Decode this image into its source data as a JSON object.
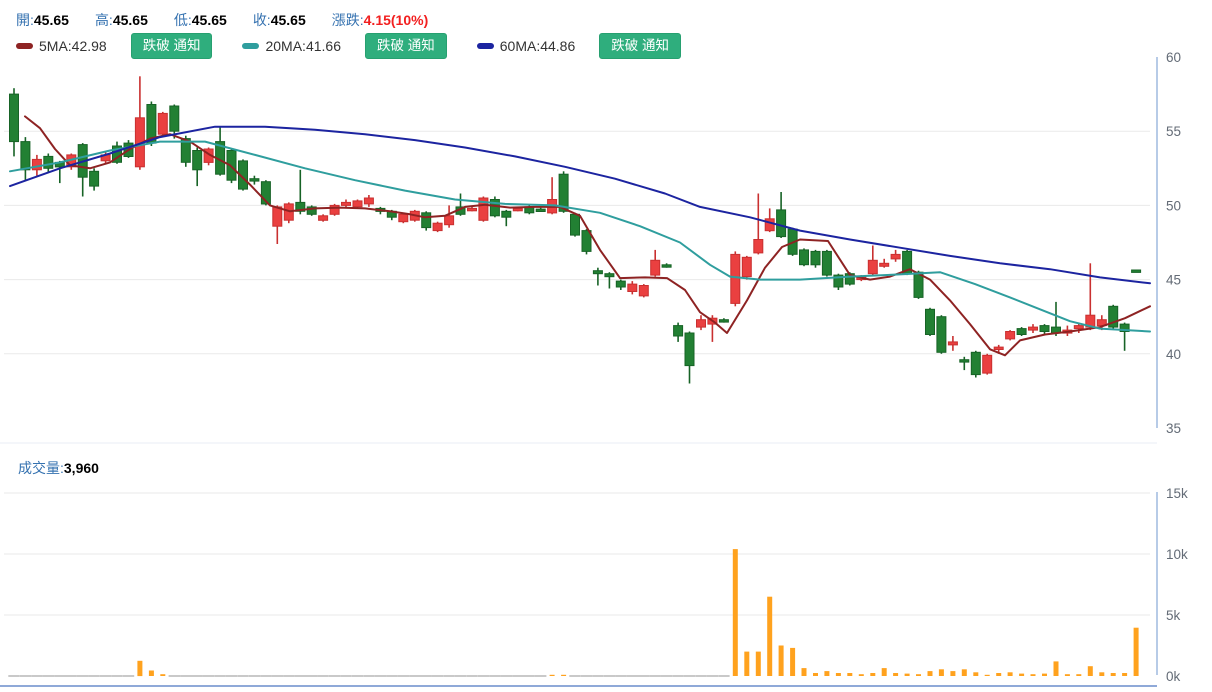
{
  "header": {
    "fields": [
      {
        "label": "開:",
        "value": "45.65"
      },
      {
        "label": "高:",
        "value": "45.65"
      },
      {
        "label": "低:",
        "value": "45.65"
      },
      {
        "label": "收:",
        "value": "45.65"
      }
    ],
    "change": {
      "label": "漲跌:",
      "value": "4.15(10%)",
      "color": "#f21f1f"
    },
    "ma_legend": [
      {
        "text": "5MA:42.98",
        "color": "#8e2323",
        "button": "跌破 通知"
      },
      {
        "text": "20MA:41.66",
        "color": "#2f9e9e",
        "button": "跌破 通知"
      },
      {
        "text": "60MA:44.86",
        "color": "#1c24a0",
        "button": "跌破 通知"
      }
    ],
    "button_color": "#2fae7d"
  },
  "volume_header": {
    "label": "成交量:",
    "value": "3,960"
  },
  "chart_data": {
    "type": "candlestick",
    "title": "",
    "legend_position": "top-left",
    "grid": true,
    "colors": {
      "up": "#ea4040",
      "up_stroke": "#c93030",
      "down": "#228033",
      "down_stroke": "#176326",
      "volume": "#ffa21e",
      "zero_volume_dash": "#c9c9c9",
      "gridline": "#eaeaea",
      "axis_line": "#b7cbe7",
      "axis_label": "#636b76",
      "separator": "#e8eef6",
      "bottom_line": "#8fa9d8"
    },
    "price_axis": {
      "range": [
        35,
        60
      ],
      "tick_values": [
        60,
        55,
        50,
        45,
        40,
        35
      ],
      "tick_labels": [
        "60",
        "55",
        "50",
        "45",
        "40",
        "35"
      ],
      "grid_values": [
        55,
        50,
        45,
        40
      ]
    },
    "volume_axis": {
      "range": [
        0,
        15000
      ],
      "tick_values": [
        15000,
        10000,
        5000,
        0
      ],
      "tick_labels": [
        "15k",
        "10k",
        "5k",
        "0k"
      ],
      "grid_values": [
        15000,
        10000,
        5000
      ]
    },
    "candles": [
      [
        57.5,
        57.9,
        53.3,
        54.3,
        0
      ],
      [
        54.3,
        54.6,
        51.7,
        52.4,
        0
      ],
      [
        52.4,
        53.4,
        52.0,
        53.1,
        0
      ],
      [
        53.3,
        53.5,
        52.2,
        52.5,
        0
      ],
      [
        52.9,
        53.0,
        51.5,
        52.6,
        0
      ],
      [
        52.6,
        53.5,
        52.4,
        53.4,
        0
      ],
      [
        54.1,
        54.2,
        50.6,
        51.9,
        0
      ],
      [
        52.3,
        52.5,
        51.0,
        51.3,
        0
      ],
      [
        53.0,
        53.6,
        52.8,
        53.4,
        0
      ],
      [
        54.0,
        54.3,
        52.8,
        52.9,
        0
      ],
      [
        54.2,
        54.4,
        53.2,
        53.3,
        0
      ],
      [
        52.6,
        58.7,
        52.4,
        55.9,
        1250
      ],
      [
        56.8,
        57.0,
        54.0,
        54.2,
        450
      ],
      [
        54.8,
        56.3,
        54.6,
        56.2,
        150
      ],
      [
        56.7,
        56.8,
        54.5,
        55.0,
        0
      ],
      [
        54.5,
        54.7,
        52.6,
        52.9,
        0
      ],
      [
        53.7,
        53.9,
        51.3,
        52.4,
        0
      ],
      [
        52.9,
        53.9,
        52.7,
        53.8,
        0
      ],
      [
        54.3,
        55.3,
        52.0,
        52.1,
        0
      ],
      [
        53.7,
        53.8,
        51.5,
        51.7,
        0
      ],
      [
        53.0,
        53.1,
        51.0,
        51.1,
        0
      ],
      [
        51.8,
        52.0,
        51.4,
        51.7,
        0
      ],
      [
        51.6,
        51.7,
        50.0,
        50.1,
        0
      ],
      [
        48.6,
        50.0,
        47.4,
        49.9,
        0
      ],
      [
        49.0,
        50.2,
        48.8,
        50.1,
        0
      ],
      [
        50.2,
        52.4,
        49.4,
        49.6,
        0
      ],
      [
        49.9,
        50.0,
        49.3,
        49.4,
        0
      ],
      [
        49.0,
        49.4,
        48.9,
        49.3,
        0
      ],
      [
        49.4,
        50.1,
        49.3,
        50.0,
        0
      ],
      [
        50.0,
        50.4,
        49.8,
        50.2,
        0
      ],
      [
        49.9,
        50.4,
        49.8,
        50.3,
        0
      ],
      [
        50.1,
        50.7,
        49.9,
        50.5,
        0
      ],
      [
        49.8,
        49.9,
        49.4,
        49.6,
        0
      ],
      [
        49.6,
        49.7,
        49.0,
        49.2,
        0
      ],
      [
        48.9,
        49.5,
        48.8,
        49.4,
        0
      ],
      [
        49.0,
        49.7,
        48.9,
        49.6,
        0
      ],
      [
        49.5,
        49.6,
        48.3,
        48.5,
        0
      ],
      [
        48.3,
        48.9,
        48.2,
        48.8,
        0
      ],
      [
        48.7,
        50.0,
        48.5,
        49.3,
        0
      ],
      [
        49.9,
        50.8,
        49.3,
        49.4,
        0
      ],
      [
        49.7,
        49.9,
        49.6,
        49.8,
        0
      ],
      [
        49.0,
        50.6,
        48.9,
        50.5,
        0
      ],
      [
        50.4,
        50.6,
        49.2,
        49.3,
        0
      ],
      [
        49.6,
        49.7,
        48.6,
        49.2,
        0
      ],
      [
        49.7,
        49.9,
        49.6,
        49.8,
        0
      ],
      [
        49.9,
        50.0,
        49.4,
        49.5,
        0
      ],
      [
        49.75,
        49.85,
        49.6,
        49.7,
        0
      ],
      [
        49.5,
        51.9,
        49.4,
        50.4,
        100
      ],
      [
        52.1,
        52.3,
        49.5,
        49.6,
        100
      ],
      [
        49.4,
        49.5,
        47.9,
        48.0,
        0
      ],
      [
        48.3,
        48.4,
        46.7,
        46.9,
        0
      ],
      [
        45.6,
        45.8,
        44.6,
        45.4,
        0
      ],
      [
        45.4,
        45.5,
        44.4,
        45.2,
        0
      ],
      [
        44.9,
        45.0,
        44.3,
        44.5,
        0
      ],
      [
        44.2,
        44.9,
        44.0,
        44.7,
        0
      ],
      [
        43.9,
        44.7,
        43.8,
        44.6,
        0
      ],
      [
        45.3,
        47.0,
        45.2,
        46.3,
        0
      ],
      [
        46.0,
        46.1,
        45.8,
        45.9,
        0
      ],
      [
        41.9,
        42.1,
        40.8,
        41.2,
        0
      ],
      [
        41.4,
        41.5,
        38.0,
        39.2,
        0
      ],
      [
        41.8,
        42.6,
        41.6,
        42.3,
        0
      ],
      [
        42.0,
        42.6,
        40.8,
        42.4,
        0
      ],
      [
        42.3,
        42.4,
        42.1,
        42.2,
        0
      ],
      [
        43.4,
        46.9,
        43.2,
        46.7,
        10400
      ],
      [
        45.2,
        46.6,
        45.0,
        46.5,
        2000
      ],
      [
        46.8,
        50.8,
        46.7,
        47.7,
        2000
      ],
      [
        48.3,
        49.8,
        48.2,
        49.1,
        6500
      ],
      [
        49.7,
        50.9,
        47.8,
        47.9,
        2500
      ],
      [
        48.4,
        48.5,
        46.6,
        46.7,
        2300
      ],
      [
        47.0,
        47.1,
        45.9,
        46.0,
        650
      ],
      [
        46.9,
        47.0,
        45.8,
        46.0,
        250
      ],
      [
        46.9,
        47.0,
        45.2,
        45.3,
        400
      ],
      [
        45.3,
        45.4,
        44.3,
        44.5,
        250
      ],
      [
        45.4,
        45.5,
        44.6,
        44.7,
        250
      ],
      [
        45.0,
        45.3,
        44.9,
        45.2,
        150
      ],
      [
        45.4,
        47.3,
        45.3,
        46.3,
        250
      ],
      [
        45.9,
        46.4,
        45.8,
        46.1,
        650
      ],
      [
        46.4,
        47.0,
        46.2,
        46.7,
        250
      ],
      [
        46.9,
        47.0,
        45.3,
        45.4,
        200
      ],
      [
        45.5,
        45.6,
        43.7,
        43.8,
        150
      ],
      [
        43.0,
        43.1,
        41.2,
        41.3,
        400
      ],
      [
        42.5,
        42.6,
        40.0,
        40.1,
        550
      ],
      [
        40.6,
        41.2,
        40.2,
        40.8,
        400
      ],
      [
        39.6,
        39.8,
        38.9,
        39.5,
        550
      ],
      [
        40.1,
        40.2,
        38.4,
        38.6,
        300
      ],
      [
        38.7,
        40.0,
        38.6,
        39.9,
        100
      ],
      [
        40.4,
        40.6,
        40.0,
        40.45,
        250
      ],
      [
        41.0,
        41.6,
        40.9,
        41.5,
        300
      ],
      [
        41.7,
        41.8,
        41.2,
        41.3,
        200
      ],
      [
        41.6,
        42.0,
        41.4,
        41.8,
        150
      ],
      [
        41.9,
        42.0,
        41.3,
        41.5,
        200
      ],
      [
        41.8,
        43.5,
        41.2,
        41.4,
        1200
      ],
      [
        41.4,
        41.9,
        41.2,
        41.6,
        150
      ],
      [
        41.7,
        42.1,
        41.4,
        41.9,
        150
      ],
      [
        41.8,
        46.1,
        41.6,
        42.6,
        800
      ],
      [
        41.9,
        42.6,
        41.6,
        42.3,
        300
      ],
      [
        43.2,
        43.3,
        41.7,
        41.8,
        250
      ],
      [
        42.0,
        42.1,
        40.2,
        41.5,
        250
      ],
      [
        45.65,
        45.65,
        45.65,
        45.65,
        3960
      ]
    ],
    "overlays": [
      {
        "name": "5MA",
        "legend_value": 42.98,
        "color": "#8e2323",
        "points": [
          [
            25,
            56.0
          ],
          [
            40,
            55.2
          ],
          [
            55,
            53.8
          ],
          [
            70,
            52.7
          ],
          [
            90,
            52.5
          ],
          [
            110,
            52.9
          ],
          [
            130,
            53.8
          ],
          [
            150,
            54.5
          ],
          [
            170,
            54.8
          ],
          [
            190,
            54.3
          ],
          [
            210,
            53.4
          ],
          [
            230,
            52.7
          ],
          [
            250,
            51.4
          ],
          [
            270,
            50.0
          ],
          [
            290,
            49.6
          ],
          [
            315,
            49.8
          ],
          [
            340,
            49.85
          ],
          [
            365,
            49.8
          ],
          [
            390,
            49.6
          ],
          [
            410,
            49.4
          ],
          [
            425,
            49.2
          ],
          [
            445,
            49.3
          ],
          [
            465,
            49.9
          ],
          [
            485,
            50.05
          ],
          [
            510,
            49.85
          ],
          [
            535,
            49.9
          ],
          [
            560,
            49.9
          ],
          [
            580,
            49.3
          ],
          [
            600,
            47.0
          ],
          [
            620,
            45.1
          ],
          [
            645,
            45.15
          ],
          [
            667,
            45.1
          ],
          [
            685,
            44.3
          ],
          [
            700,
            42.8
          ],
          [
            715,
            42.1
          ],
          [
            727,
            41.4
          ],
          [
            747,
            43.6
          ],
          [
            765,
            45.8
          ],
          [
            782,
            47.2
          ],
          [
            800,
            47.7
          ],
          [
            828,
            47.6
          ],
          [
            850,
            45.3
          ],
          [
            870,
            45.0
          ],
          [
            890,
            45.2
          ],
          [
            910,
            45.7
          ],
          [
            930,
            45.0
          ],
          [
            950,
            43.6
          ],
          [
            970,
            42.0
          ],
          [
            990,
            40.3
          ],
          [
            1005,
            39.9
          ],
          [
            1020,
            40.9
          ],
          [
            1045,
            41.3
          ],
          [
            1070,
            41.5
          ],
          [
            1100,
            41.8
          ],
          [
            1125,
            42.4
          ],
          [
            1150,
            43.2
          ]
        ]
      },
      {
        "name": "20MA",
        "legend_value": 41.66,
        "color": "#2f9e9e",
        "points": [
          [
            10,
            52.3
          ],
          [
            60,
            52.9
          ],
          [
            110,
            53.7
          ],
          [
            160,
            54.3
          ],
          [
            205,
            54.3
          ],
          [
            255,
            53.4
          ],
          [
            305,
            52.5
          ],
          [
            355,
            51.7
          ],
          [
            405,
            51.0
          ],
          [
            455,
            50.4
          ],
          [
            505,
            50.1
          ],
          [
            555,
            50.0
          ],
          [
            600,
            49.5
          ],
          [
            640,
            48.6
          ],
          [
            680,
            47.5
          ],
          [
            710,
            46.0
          ],
          [
            730,
            45.2
          ],
          [
            760,
            45.0
          ],
          [
            800,
            45.0
          ],
          [
            850,
            45.2
          ],
          [
            900,
            45.35
          ],
          [
            940,
            45.5
          ],
          [
            975,
            44.7
          ],
          [
            1010,
            43.8
          ],
          [
            1040,
            43.0
          ],
          [
            1070,
            42.2
          ],
          [
            1100,
            41.7
          ],
          [
            1150,
            41.5
          ]
        ]
      },
      {
        "name": "60MA",
        "legend_value": 44.86,
        "color": "#1c24a0",
        "points": [
          [
            10,
            51.3
          ],
          [
            60,
            52.5
          ],
          [
            110,
            53.5
          ],
          [
            160,
            54.6
          ],
          [
            215,
            55.3
          ],
          [
            265,
            55.3
          ],
          [
            315,
            55.1
          ],
          [
            365,
            54.8
          ],
          [
            415,
            54.4
          ],
          [
            465,
            53.9
          ],
          [
            515,
            53.3
          ],
          [
            565,
            52.6
          ],
          [
            615,
            51.8
          ],
          [
            665,
            50.8
          ],
          [
            700,
            49.9
          ],
          [
            750,
            49.2
          ],
          [
            800,
            48.3
          ],
          [
            850,
            47.7
          ],
          [
            900,
            47.15
          ],
          [
            950,
            46.6
          ],
          [
            1000,
            46.1
          ],
          [
            1050,
            45.7
          ],
          [
            1100,
            45.15
          ],
          [
            1150,
            44.75
          ]
        ]
      }
    ]
  }
}
